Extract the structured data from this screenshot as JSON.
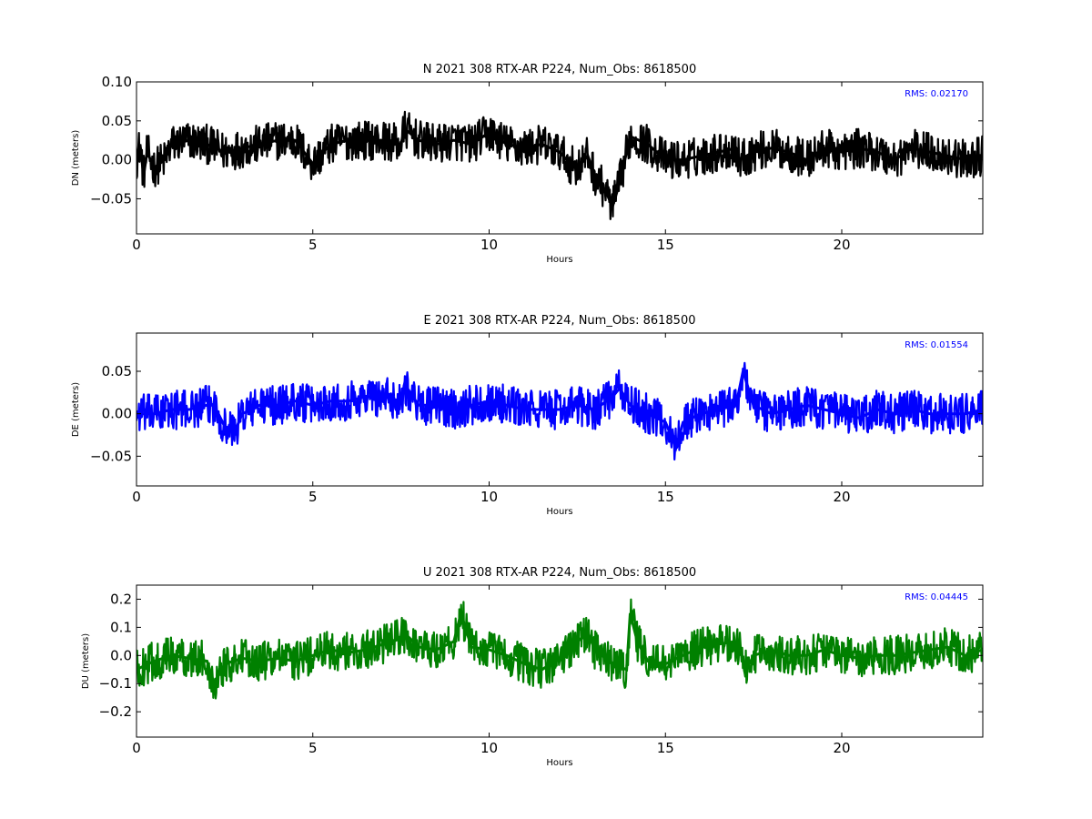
{
  "chart_data": [
    {
      "type": "line",
      "title": "N 2021 308 RTX-AR  P224, Num_Obs: 8618500",
      "xlabel": "Hours",
      "ylabel": "DN (meters)",
      "xlim": [
        0,
        24
      ],
      "ylim": [
        -0.095,
        0.1
      ],
      "xticks": [
        0,
        5,
        10,
        15,
        20
      ],
      "yticks": [
        -0.05,
        0.0,
        0.05,
        0.1
      ],
      "ytick_labels": [
        "−0.05",
        "0.00",
        "0.05",
        "0.10"
      ],
      "rms_label": "RMS:  0.02170",
      "color": "#000000",
      "legend": "top-right",
      "series": [
        {
          "x": [
            0,
            0.1,
            0.2,
            0.3,
            0.5,
            0.8,
            1.0,
            1.5,
            2.0,
            2.5,
            3.0,
            3.5,
            4.0,
            4.5,
            5.0,
            5.5,
            6.0,
            6.5,
            7.0,
            7.5,
            7.6,
            8.0,
            8.5,
            9.0,
            9.5,
            10.0,
            10.5,
            11.0,
            11.5,
            12.0,
            12.3,
            12.5,
            12.8,
            13.0,
            13.3,
            13.5,
            13.7,
            14.0,
            14.5,
            15.0,
            15.5,
            16.0,
            16.5,
            17.0,
            17.1,
            17.5,
            18.0,
            18.5,
            19.0,
            19.5,
            20.0,
            20.5,
            21.0,
            21.5,
            22.0,
            22.5,
            23.0,
            23.5,
            24.0
          ],
          "y": [
            0.0,
            0.02,
            -0.02,
            0.01,
            -0.01,
            0.0,
            0.02,
            0.025,
            0.02,
            0.01,
            0.015,
            0.02,
            0.025,
            0.025,
            -0.005,
            0.02,
            0.025,
            0.025,
            0.025,
            0.02,
            0.04,
            0.025,
            0.02,
            0.025,
            0.02,
            0.035,
            0.02,
            0.015,
            0.02,
            0.01,
            -0.005,
            -0.01,
            0.005,
            -0.02,
            -0.04,
            -0.06,
            -0.03,
            0.03,
            0.02,
            0.0,
            0.0,
            0.005,
            0.01,
            0.015,
            0.0,
            0.01,
            0.015,
            0.01,
            0.0,
            0.015,
            0.01,
            0.015,
            0.01,
            0.0,
            0.015,
            0.01,
            0.005,
            0.0,
            0.005
          ]
        }
      ]
    },
    {
      "type": "line",
      "title": "E 2021 308 RTX-AR  P224, Num_Obs: 8618500",
      "xlabel": "Hours",
      "ylabel": "DE (meters)",
      "xlim": [
        0,
        24
      ],
      "ylim": [
        -0.085,
        0.095
      ],
      "xticks": [
        0,
        5,
        10,
        15,
        20
      ],
      "yticks": [
        -0.05,
        0.0,
        0.05
      ],
      "ytick_labels": [
        "−0.05",
        "0.00",
        "0.05"
      ],
      "rms_label": "RMS:  0.01554",
      "color": "#0000ff",
      "legend": "top-right",
      "series": [
        {
          "x": [
            0,
            0.5,
            1.0,
            1.5,
            2.0,
            2.2,
            2.5,
            2.8,
            3.0,
            3.5,
            4.0,
            4.5,
            5.0,
            5.5,
            6.0,
            6.5,
            7.0,
            7.5,
            7.6,
            8.0,
            8.5,
            9.0,
            9.5,
            10.0,
            10.5,
            11.0,
            11.5,
            12.0,
            12.5,
            13.0,
            13.5,
            13.7,
            14.0,
            14.5,
            15.0,
            15.3,
            15.5,
            16.0,
            16.5,
            17.0,
            17.2,
            17.5,
            18.0,
            18.5,
            19.0,
            19.5,
            20.0,
            20.5,
            21.0,
            21.5,
            22.0,
            22.5,
            23.0,
            23.5,
            24.0
          ],
          "y": [
            0.0,
            0.0,
            0.005,
            0.005,
            0.01,
            0.01,
            -0.015,
            -0.02,
            0.0,
            0.01,
            0.01,
            0.015,
            0.01,
            0.015,
            0.015,
            0.02,
            0.02,
            0.015,
            0.035,
            0.01,
            0.01,
            0.005,
            0.01,
            0.015,
            0.01,
            0.005,
            0.005,
            0.005,
            0.01,
            0.005,
            0.02,
            0.03,
            0.01,
            0.0,
            -0.01,
            -0.04,
            -0.01,
            0.0,
            0.005,
            0.01,
            0.05,
            0.01,
            0.0,
            0.005,
            0.01,
            0.005,
            0.0,
            -0.005,
            0.005,
            0.0,
            0.005,
            0.0,
            0.0,
            0.0,
            0.005
          ]
        }
      ]
    },
    {
      "type": "line",
      "title": "U 2021 308 RTX-AR  P224, Num_Obs: 8618500",
      "xlabel": "Hours",
      "ylabel": "DU (meters)",
      "xlim": [
        0,
        24
      ],
      "ylim": [
        -0.29,
        0.25
      ],
      "xticks": [
        0,
        5,
        10,
        15,
        20
      ],
      "yticks": [
        -0.2,
        -0.1,
        0.0,
        0.1,
        0.2
      ],
      "ytick_labels": [
        "−0.2",
        "−0.1",
        "0.0",
        "0.1",
        "0.2"
      ],
      "rms_label": "RMS:  0.04445",
      "color": "#008000",
      "legend": "top-right",
      "series": [
        {
          "x": [
            0,
            0.5,
            1.0,
            1.5,
            2.0,
            2.2,
            2.5,
            3.0,
            3.5,
            4.0,
            4.5,
            5.0,
            5.5,
            6.0,
            6.5,
            7.0,
            7.5,
            7.6,
            8.0,
            8.5,
            9.0,
            9.2,
            9.5,
            10.0,
            10.5,
            11.0,
            11.5,
            12.0,
            12.5,
            12.8,
            13.0,
            13.5,
            13.9,
            14.0,
            14.2,
            14.5,
            15.0,
            15.5,
            16.0,
            16.5,
            17.0,
            17.3,
            17.5,
            18.0,
            18.5,
            19.0,
            19.5,
            20.0,
            20.5,
            21.0,
            21.5,
            22.0,
            22.5,
            23.0,
            23.5,
            24.0
          ],
          "y": [
            -0.05,
            -0.02,
            0.0,
            -0.01,
            -0.02,
            -0.1,
            -0.03,
            -0.01,
            -0.02,
            -0.01,
            -0.02,
            0.0,
            0.02,
            0.01,
            0.02,
            0.04,
            0.06,
            0.08,
            0.03,
            0.02,
            0.05,
            0.15,
            0.03,
            0.02,
            0.0,
            -0.03,
            -0.05,
            -0.01,
            0.05,
            0.08,
            0.02,
            -0.03,
            -0.05,
            0.15,
            0.05,
            -0.02,
            -0.03,
            0.0,
            0.03,
            0.04,
            0.05,
            -0.05,
            0.0,
            0.02,
            0.0,
            0.0,
            0.02,
            0.0,
            -0.01,
            0.0,
            0.0,
            0.01,
            0.02,
            0.03,
            0.0,
            0.02
          ]
        }
      ]
    }
  ]
}
